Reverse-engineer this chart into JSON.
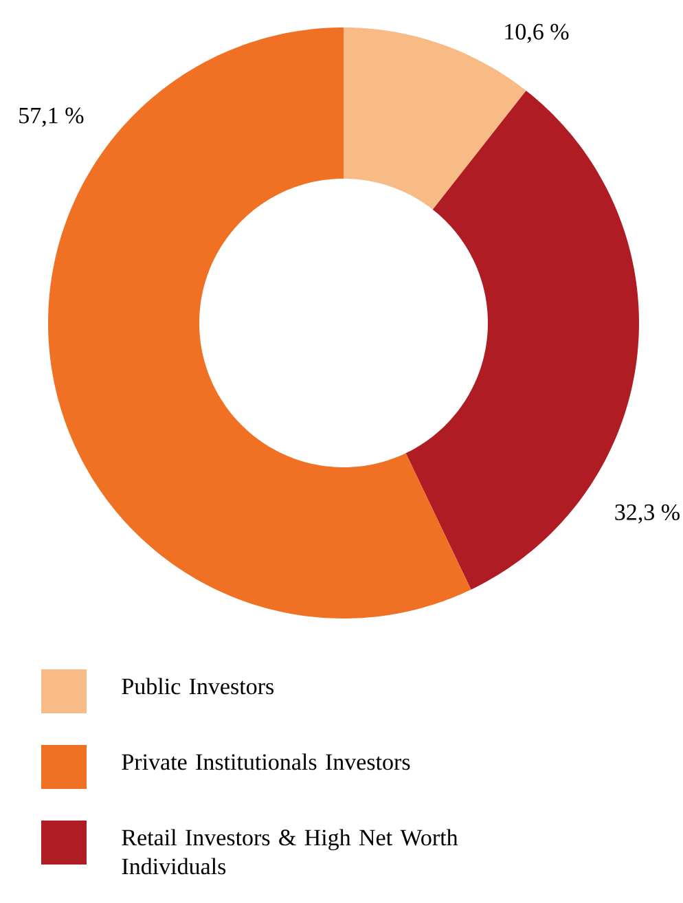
{
  "chart_data": {
    "type": "donut",
    "categories": [
      "Public Investors",
      "Private Institutionals Investors",
      "Retail Investors & High Net Worth Individuals"
    ],
    "values": [
      10.6,
      57.1,
      32.3
    ],
    "colors": [
      "#f9bb85",
      "#f07123",
      "#b01c24"
    ],
    "value_labels": [
      "10,6 %",
      "57,1 %",
      "32,3 %"
    ],
    "legend": "bottom"
  }
}
